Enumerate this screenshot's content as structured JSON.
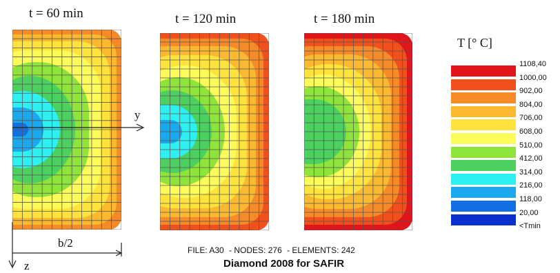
{
  "panels": [
    {
      "label": "t = 60 min"
    },
    {
      "label": "t = 120 min"
    },
    {
      "label": "t = 180 min"
    }
  ],
  "legend": {
    "title": "T [° C]",
    "levels": [
      {
        "value": "1108,40",
        "color": "#e0141b"
      },
      {
        "value": "1000,00",
        "color": "#f0501c"
      },
      {
        "value": "902,00",
        "color": "#f58a28"
      },
      {
        "value": "804,00",
        "color": "#fbb930"
      },
      {
        "value": "706,00",
        "color": "#fde33b"
      },
      {
        "value": "608,00",
        "color": "#fbfb5a"
      },
      {
        "value": "510,00",
        "color": "#8ee43a"
      },
      {
        "value": "412,00",
        "color": "#4cd060"
      },
      {
        "value": "314,00",
        "color": "#2ff0f0"
      },
      {
        "value": "216,00",
        "color": "#1aa8ee"
      },
      {
        "value": "118,00",
        "color": "#1370e4"
      },
      {
        "value": "20,00",
        "color": "#0b2fcc"
      },
      {
        "value": "<Tmin",
        "color": null
      }
    ]
  },
  "axes": {
    "y_label": "y",
    "z_label": "z",
    "width_label": "b/2"
  },
  "footer": {
    "file": "FILE: A30",
    "nodes": "- NODES: 276",
    "elements": "- ELEMENTS: 242",
    "software": "Diamond 2008 for SAFIR"
  }
}
